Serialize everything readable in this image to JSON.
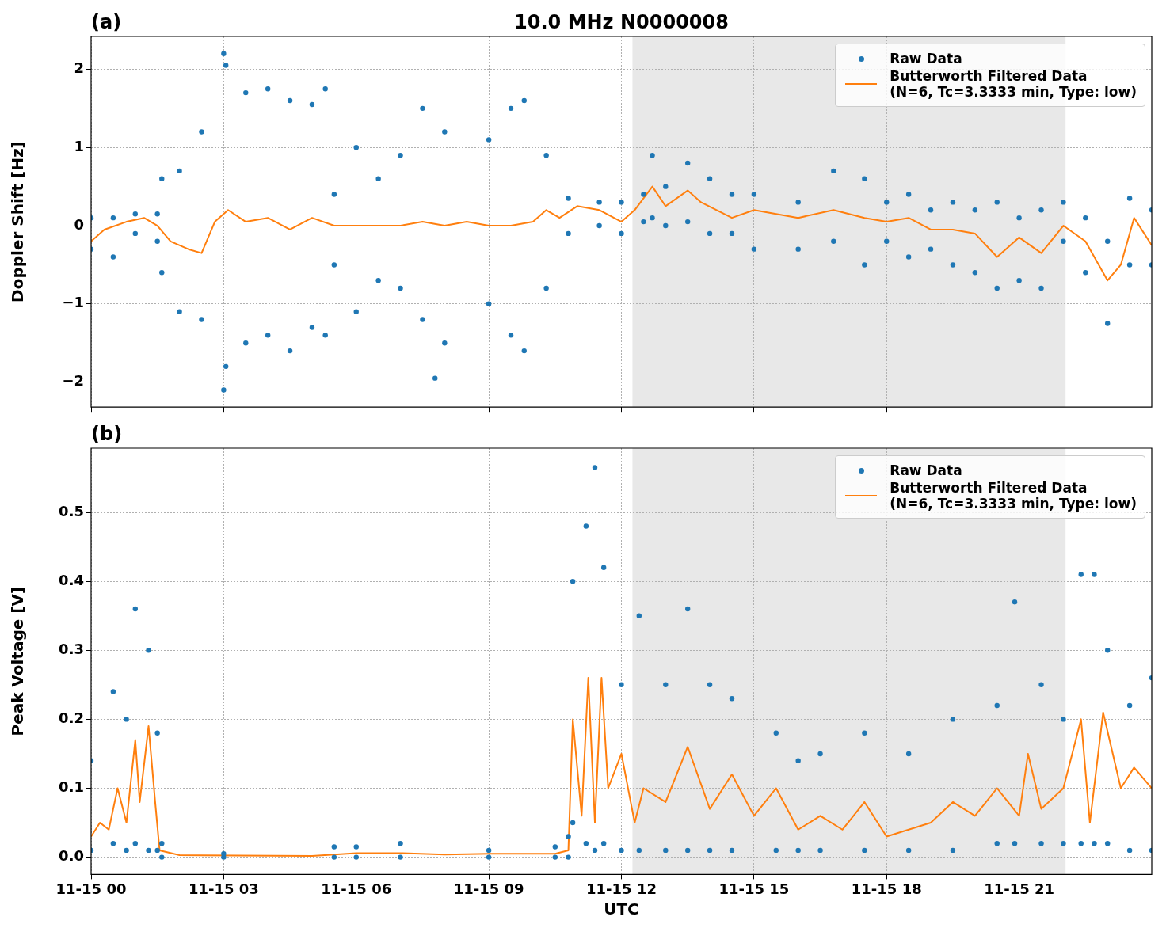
{
  "chart_data": [
    {
      "type": "scatter",
      "title": "10.0 MHz N0000008",
      "annotations": [
        "(a)"
      ],
      "ylabel": "Doppler Shift [Hz]",
      "xlim": [
        "--11-15T00:00",
        "--11-16T00:00"
      ],
      "xticks": [
        {
          "value": "--11-15T00:00",
          "label": "11-15 00"
        },
        {
          "value": "--11-15T03:00",
          "label": "11-15 03"
        },
        {
          "value": "--11-15T06:00",
          "label": "11-15 06"
        },
        {
          "value": "--11-15T09:00",
          "label": "11-15 09"
        },
        {
          "value": "--11-15T12:00",
          "label": "11-15 12"
        },
        {
          "value": "--11-15T15:00",
          "label": "11-15 15"
        },
        {
          "value": "--11-15T18:00",
          "label": "11-15 18"
        },
        {
          "value": "--11-15T21:00",
          "label": "11-15 21"
        }
      ],
      "ylim": [
        -2.32,
        2.42
      ],
      "yticks": [
        -2,
        -1,
        0,
        1,
        2
      ],
      "tick_labels": "y",
      "grid": true,
      "legend": "top right",
      "bands": [
        {
          "axis": "x",
          "from": "--11-15T12:15",
          "to": "--11-15T22:03",
          "color": "#e8e8e8"
        }
      ],
      "series": [
        {
          "name": "Raw Data",
          "type": "scatter",
          "marker": "circle",
          "color": "#1f77b4",
          "x": [
            "--11-15T00:00",
            "--11-15T00:00",
            "--11-15T00:30",
            "--11-15T00:30",
            "--11-15T01:00",
            "--11-15T01:00",
            "--11-15T01:30",
            "--11-15T01:30",
            "--11-15T01:36",
            "--11-15T01:36",
            "--11-15T02:00",
            "--11-15T02:00",
            "--11-15T02:30",
            "--11-15T02:30",
            "--11-15T03:00",
            "--11-15T03:00",
            "--11-15T03:03",
            "--11-15T03:03",
            "--11-15T03:30",
            "--11-15T03:30",
            "--11-15T04:00",
            "--11-15T04:00",
            "--11-15T04:30",
            "--11-15T04:30",
            "--11-15T05:00",
            "--11-15T05:00",
            "--11-15T05:18",
            "--11-15T05:18",
            "--11-15T05:30",
            "--11-15T05:30",
            "--11-15T06:00",
            "--11-15T06:00",
            "--11-15T06:30",
            "--11-15T06:30",
            "--11-15T07:00",
            "--11-15T07:00",
            "--11-15T07:30",
            "--11-15T07:30",
            "--11-15T07:47",
            "--11-15T08:00",
            "--11-15T08:00",
            "--11-15T09:00",
            "--11-15T09:00",
            "--11-15T09:30",
            "--11-15T09:30",
            "--11-15T09:48",
            "--11-15T09:48",
            "--11-15T10:18",
            "--11-15T10:18",
            "--11-15T10:48",
            "--11-15T10:48",
            "--11-15T11:30",
            "--11-15T11:30",
            "--11-15T12:00",
            "--11-15T12:00",
            "--11-15T12:30",
            "--11-15T12:30",
            "--11-15T12:42",
            "--11-15T12:42",
            "--11-15T13:00",
            "--11-15T13:00",
            "--11-15T13:30",
            "--11-15T13:30",
            "--11-15T14:00",
            "--11-15T14:00",
            "--11-15T14:30",
            "--11-15T14:30",
            "--11-15T15:00",
            "--11-15T15:00",
            "--11-15T16:00",
            "--11-15T16:00",
            "--11-15T16:48",
            "--11-15T16:48",
            "--11-15T17:30",
            "--11-15T17:30",
            "--11-15T18:00",
            "--11-15T18:00",
            "--11-15T18:30",
            "--11-15T18:30",
            "--11-15T19:00",
            "--11-15T19:00",
            "--11-15T19:30",
            "--11-15T19:30",
            "--11-15T20:00",
            "--11-15T20:00",
            "--11-15T20:30",
            "--11-15T20:30",
            "--11-15T21:00",
            "--11-15T21:00",
            "--11-15T21:30",
            "--11-15T21:30",
            "--11-15T22:00",
            "--11-15T22:00",
            "--11-15T22:30",
            "--11-15T22:30",
            "--11-15T23:00",
            "--11-15T23:00",
            "--11-15T23:30",
            "--11-15T23:30",
            "--11-16T00:00",
            "--11-16T00:00"
          ],
          "values": [
            -0.3,
            0.1,
            -0.4,
            0.1,
            -0.1,
            0.15,
            -0.2,
            0.15,
            -0.6,
            0.6,
            -1.1,
            0.7,
            -1.2,
            1.2,
            -2.1,
            2.2,
            -1.8,
            2.05,
            -1.5,
            1.7,
            -1.4,
            1.75,
            -1.6,
            1.6,
            -1.3,
            1.55,
            -1.4,
            1.75,
            -0.5,
            0.4,
            -1.1,
            1,
            -0.7,
            0.6,
            -0.8,
            0.9,
            -1.2,
            1.5,
            -1.95,
            -1.5,
            1.2,
            -1,
            1.1,
            -1.4,
            1.5,
            -1.6,
            1.6,
            -0.8,
            0.9,
            -0.1,
            0.35,
            0,
            0.3,
            -0.1,
            0.3,
            0.05,
            0.4,
            0.1,
            0.9,
            0,
            0.5,
            0.05,
            0.8,
            -0.1,
            0.6,
            -0.1,
            0.4,
            -0.3,
            0.4,
            -0.3,
            0.3,
            -0.2,
            0.7,
            -0.5,
            0.6,
            -0.2,
            0.3,
            -0.4,
            0.4,
            -0.3,
            0.2,
            -0.5,
            0.3,
            -0.6,
            0.2,
            -0.8,
            0.3,
            -0.7,
            0.1,
            -0.8,
            0.2,
            -0.2,
            0.3,
            -0.6,
            0.1,
            -1.25,
            -0.2,
            -0.5,
            0.35,
            -0.5,
            0.2
          ]
        },
        {
          "name": "Butterworth Filtered Data\n(N=6, Tc=3.3333 min, Type: low)",
          "type": "line",
          "color": "#ff7f0e",
          "x": [
            "--11-15T00:00",
            "--11-15T00:18",
            "--11-15T00:48",
            "--11-15T01:12",
            "--11-15T01:30",
            "--11-15T01:48",
            "--11-15T02:12",
            "--11-15T02:30",
            "--11-15T02:48",
            "--11-15T03:06",
            "--11-15T03:30",
            "--11-15T04:00",
            "--11-15T04:30",
            "--11-15T05:00",
            "--11-15T05:30",
            "--11-15T06:00",
            "--11-15T06:30",
            "--11-15T07:00",
            "--11-15T07:30",
            "--11-15T08:00",
            "--11-15T08:30",
            "--11-15T09:00",
            "--11-15T09:30",
            "--11-15T10:00",
            "--11-15T10:18",
            "--11-15T10:36",
            "--11-15T11:00",
            "--11-15T11:30",
            "--11-15T12:00",
            "--11-15T12:18",
            "--11-15T12:42",
            "--11-15T13:00",
            "--11-15T13:30",
            "--11-15T13:48",
            "--11-15T14:30",
            "--11-15T15:00",
            "--11-15T15:30",
            "--11-15T16:00",
            "--11-15T16:48",
            "--11-15T17:30",
            "--11-15T18:00",
            "--11-15T18:30",
            "--11-15T19:00",
            "--11-15T19:30",
            "--11-15T20:00",
            "--11-15T20:30",
            "--11-15T21:00",
            "--11-15T21:30",
            "--11-15T22:00",
            "--11-15T22:30",
            "--11-15T23:00",
            "--11-15T23:18",
            "--11-15T23:36",
            "--11-16T00:00"
          ],
          "values": [
            -0.2,
            -0.05,
            0.05,
            0.1,
            0,
            -0.2,
            -0.3,
            -0.35,
            0.05,
            0.2,
            0.05,
            0.1,
            -0.05,
            0.1,
            0,
            0,
            0,
            0,
            0.05,
            0,
            0.05,
            0,
            0,
            0.05,
            0.2,
            0.1,
            0.25,
            0.2,
            0.05,
            0.2,
            0.5,
            0.25,
            0.45,
            0.3,
            0.1,
            0.2,
            0.15,
            0.1,
            0.2,
            0.1,
            0.05,
            0.1,
            -0.05,
            -0.05,
            -0.1,
            -0.4,
            -0.15,
            -0.35,
            0,
            -0.2,
            -0.7,
            -0.5,
            0.1,
            -0.25
          ]
        }
      ]
    },
    {
      "type": "scatter",
      "annotations": [
        "(b)"
      ],
      "xlabel": "UTC",
      "ylabel": "Peak Voltage [V]",
      "xlim": [
        "--11-15T00:00",
        "--11-16T00:00"
      ],
      "xticks": [
        {
          "value": "--11-15T00:00",
          "label": "11-15 00"
        },
        {
          "value": "--11-15T03:00",
          "label": "11-15 03"
        },
        {
          "value": "--11-15T06:00",
          "label": "11-15 06"
        },
        {
          "value": "--11-15T09:00",
          "label": "11-15 09"
        },
        {
          "value": "--11-15T12:00",
          "label": "11-15 12"
        },
        {
          "value": "--11-15T15:00",
          "label": "11-15 15"
        },
        {
          "value": "--11-15T18:00",
          "label": "11-15 18"
        },
        {
          "value": "--11-15T21:00",
          "label": "11-15 21"
        }
      ],
      "ylim": [
        -0.025,
        0.593
      ],
      "yticks": [
        {
          "value": 0,
          "label": "0.0"
        },
        {
          "value": 0.1,
          "label": "0.1"
        },
        {
          "value": 0.2,
          "label": "0.2"
        },
        {
          "value": 0.3,
          "label": "0.3"
        },
        {
          "value": 0.4,
          "label": "0.4"
        },
        {
          "value": 0.5,
          "label": "0.5"
        }
      ],
      "grid": true,
      "legend": "top right",
      "bands": [
        {
          "axis": "x",
          "from": "--11-15T12:15",
          "to": "--11-15T22:03",
          "color": "#e8e8e8"
        }
      ],
      "series": [
        {
          "name": "Raw Data",
          "type": "scatter",
          "marker": "circle",
          "color": "#1f77b4",
          "x": [
            "--11-15T00:00",
            "--11-15T00:00",
            "--11-15T00:30",
            "--11-15T00:30",
            "--11-15T00:48",
            "--11-15T00:48",
            "--11-15T01:00",
            "--11-15T01:00",
            "--11-15T01:18",
            "--11-15T01:18",
            "--11-15T01:30",
            "--11-15T01:30",
            "--11-15T01:36",
            "--11-15T01:36",
            "--11-15T03:00",
            "--11-15T03:00",
            "--11-15T05:30",
            "--11-15T05:30",
            "--11-15T06:00",
            "--11-15T06:00",
            "--11-15T07:00",
            "--11-15T07:00",
            "--11-15T09:00",
            "--11-15T09:00",
            "--11-15T10:30",
            "--11-15T10:30",
            "--11-15T10:48",
            "--11-15T10:48",
            "--11-15T10:54",
            "--11-15T10:54",
            "--11-15T11:12",
            "--11-15T11:12",
            "--11-15T11:24",
            "--11-15T11:24",
            "--11-15T11:36",
            "--11-15T11:36",
            "--11-15T12:00",
            "--11-15T12:00",
            "--11-15T12:24",
            "--11-15T12:24",
            "--11-15T13:00",
            "--11-15T13:00",
            "--11-15T13:30",
            "--11-15T13:30",
            "--11-15T14:00",
            "--11-15T14:00",
            "--11-15T14:30",
            "--11-15T14:30",
            "--11-15T15:30",
            "--11-15T15:30",
            "--11-15T16:00",
            "--11-15T16:00",
            "--11-15T16:30",
            "--11-15T16:30",
            "--11-15T17:30",
            "--11-15T17:30",
            "--11-15T18:30",
            "--11-15T18:30",
            "--11-15T19:30",
            "--11-15T19:30",
            "--11-15T20:30",
            "--11-15T20:30",
            "--11-15T20:54",
            "--11-15T20:54",
            "--11-15T21:30",
            "--11-15T21:30",
            "--11-15T22:00",
            "--11-15T22:00",
            "--11-15T22:24",
            "--11-15T22:24",
            "--11-15T22:42",
            "--11-15T22:42",
            "--11-15T23:00",
            "--11-15T23:00",
            "--11-15T23:30",
            "--11-15T23:30",
            "--11-16T00:00",
            "--11-16T00:00"
          ],
          "values": [
            0.01,
            0.14,
            0.02,
            0.24,
            0.01,
            0.2,
            0.02,
            0.36,
            0.01,
            0.3,
            0.01,
            0.18,
            0,
            0.02,
            0,
            0.005,
            0,
            0.015,
            0,
            0.015,
            0,
            0.02,
            0,
            0.01,
            0,
            0.015,
            0,
            0.03,
            0.05,
            0.4,
            0.02,
            0.48,
            0.01,
            0.565,
            0.02,
            0.42,
            0.01,
            0.25,
            0.01,
            0.35,
            0.01,
            0.25,
            0.01,
            0.36,
            0.01,
            0.25,
            0.01,
            0.23,
            0.01,
            0.18,
            0.01,
            0.14,
            0.01,
            0.15,
            0.01,
            0.18,
            0.01,
            0.15,
            0.01,
            0.2,
            0.02,
            0.22,
            0.02,
            0.37,
            0.02,
            0.25,
            0.02,
            0.2,
            0.02,
            0.41,
            0.02,
            0.41,
            0.02,
            0.3,
            0.01,
            0.22,
            0.01,
            0.26
          ]
        },
        {
          "name": "Butterworth Filtered Data\n(N=6, Tc=3.3333 min, Type: low)",
          "type": "line",
          "color": "#ff7f0e",
          "x": [
            "--11-15T00:00",
            "--11-15T00:12",
            "--11-15T00:24",
            "--11-15T00:36",
            "--11-15T00:48",
            "--11-15T01:00",
            "--11-15T01:06",
            "--11-15T01:18",
            "--11-15T01:27",
            "--11-15T01:33",
            "--11-15T02:00",
            "--11-15T05:00",
            "--11-15T06:00",
            "--11-15T07:00",
            "--11-15T08:00",
            "--11-15T09:00",
            "--11-15T10:30",
            "--11-15T10:48",
            "--11-15T10:54",
            "--11-15T11:06",
            "--11-15T11:15",
            "--11-15T11:24",
            "--11-15T11:33",
            "--11-15T11:42",
            "--11-15T12:00",
            "--11-15T12:18",
            "--11-15T12:30",
            "--11-15T13:00",
            "--11-15T13:30",
            "--11-15T14:00",
            "--11-15T14:30",
            "--11-15T15:00",
            "--11-15T15:30",
            "--11-15T16:00",
            "--11-15T16:30",
            "--11-15T17:00",
            "--11-15T17:30",
            "--11-15T18:00",
            "--11-15T18:30",
            "--11-15T19:00",
            "--11-15T19:30",
            "--11-15T20:00",
            "--11-15T20:30",
            "--11-15T21:00",
            "--11-15T21:12",
            "--11-15T21:30",
            "--11-15T22:00",
            "--11-15T22:24",
            "--11-15T22:36",
            "--11-15T22:54",
            "--11-15T23:18",
            "--11-15T23:36",
            "--11-16T00:00"
          ],
          "values": [
            0.03,
            0.05,
            0.04,
            0.1,
            0.05,
            0.17,
            0.08,
            0.19,
            0.08,
            0.01,
            0.003,
            0.002,
            0.006,
            0.006,
            0.004,
            0.005,
            0.005,
            0.01,
            0.2,
            0.06,
            0.26,
            0.05,
            0.26,
            0.1,
            0.15,
            0.05,
            0.1,
            0.08,
            0.16,
            0.07,
            0.12,
            0.06,
            0.1,
            0.04,
            0.06,
            0.04,
            0.08,
            0.03,
            0.04,
            0.05,
            0.08,
            0.06,
            0.1,
            0.06,
            0.15,
            0.07,
            0.1,
            0.2,
            0.05,
            0.21,
            0.1,
            0.13,
            0.1
          ]
        }
      ]
    }
  ]
}
